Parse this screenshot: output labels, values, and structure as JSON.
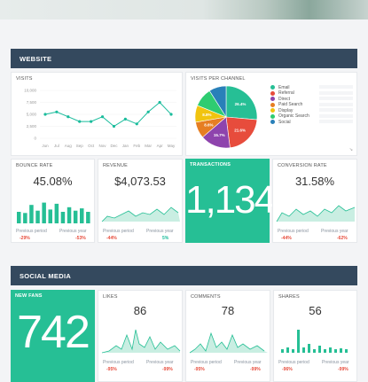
{
  "website": {
    "header": "WEBSITE",
    "visits": {
      "title": "VISITS",
      "y_ticks": [
        "10,000",
        "7,500",
        "5,000",
        "2,500",
        "0"
      ],
      "months": [
        "Jun",
        "Jul",
        "Aug",
        "Sep",
        "Oct",
        "Nov",
        "Dec",
        "Jan",
        "Feb",
        "Mar",
        "Apr",
        "May"
      ],
      "values": [
        5000,
        5500,
        4500,
        3500,
        3500,
        4500,
        2500,
        4000,
        3000,
        5500,
        7500,
        5000
      ],
      "color": "#1abc9c"
    },
    "channels": {
      "title": "VISITS PER CHANNEL",
      "slices": [
        {
          "label": "Email",
          "pct_label": "26.4%",
          "value": 26.4,
          "color": "#26bf95"
        },
        {
          "label": "Referral",
          "pct_label": "21.6%",
          "value": 21.6,
          "color": "#e74c3c"
        },
        {
          "label": "Direct",
          "pct_label": "15.7%",
          "value": 15.7,
          "color": "#8e44ad"
        },
        {
          "label": "Paid Search",
          "pct_label": "8.6%",
          "value": 8.6,
          "color": "#e67e22"
        },
        {
          "label": "Display",
          "pct_label": "8.8%",
          "value": 8.8,
          "color": "#f1c40f"
        },
        {
          "label": "Organic Search",
          "pct_label": "",
          "value": 9.9,
          "color": "#2ecc71"
        },
        {
          "label": "Social",
          "pct_label": "",
          "value": 9.0,
          "color": "#2980b9"
        }
      ]
    },
    "bounce": {
      "title": "BOUNCE RATE",
      "value": "45.08%",
      "prev_label": "Previous period",
      "prev_delta": "-29%",
      "year_label": "Previous year",
      "year_delta": "-53%",
      "bars": [
        0.5,
        0.45,
        0.8,
        0.55,
        0.9,
        0.6,
        0.85,
        0.5,
        0.7,
        0.55,
        0.65,
        0.5
      ]
    },
    "revenue": {
      "title": "REVENUE",
      "value": "$4,073.53",
      "prev_label": "Previous period",
      "prev_delta": "-44%",
      "year_label": "Previous year",
      "year_delta": "5%"
    },
    "transactions": {
      "title": "TRANSACTIONS",
      "value": "1,134"
    },
    "conversion": {
      "title": "CONVERSION RATE",
      "value": "31.58%",
      "prev_label": "Previous period",
      "prev_delta": "-44%",
      "year_label": "Previous year",
      "year_delta": "-62%"
    }
  },
  "social": {
    "header": "SOCIAL MEDIA",
    "fans": {
      "title": "NEW FANS",
      "value": "742"
    },
    "likes": {
      "title": "LIKES",
      "value": "86",
      "prev_label": "Previous period",
      "prev_delta": "-95%",
      "year_label": "Previous year",
      "year_delta": "-99%"
    },
    "comments": {
      "title": "COMMENTS",
      "value": "78",
      "prev_label": "Previous period",
      "prev_delta": "-95%",
      "year_label": "Previous year",
      "year_delta": "-99%"
    },
    "shares": {
      "title": "SHARES",
      "value": "56",
      "prev_label": "Previous period",
      "prev_delta": "-96%",
      "year_label": "Previous year",
      "year_delta": "-99%"
    }
  },
  "colors": {
    "accent": "#26bf95",
    "header": "#34495e",
    "negative": "#e74c3c",
    "positive": "#1abc9c"
  }
}
